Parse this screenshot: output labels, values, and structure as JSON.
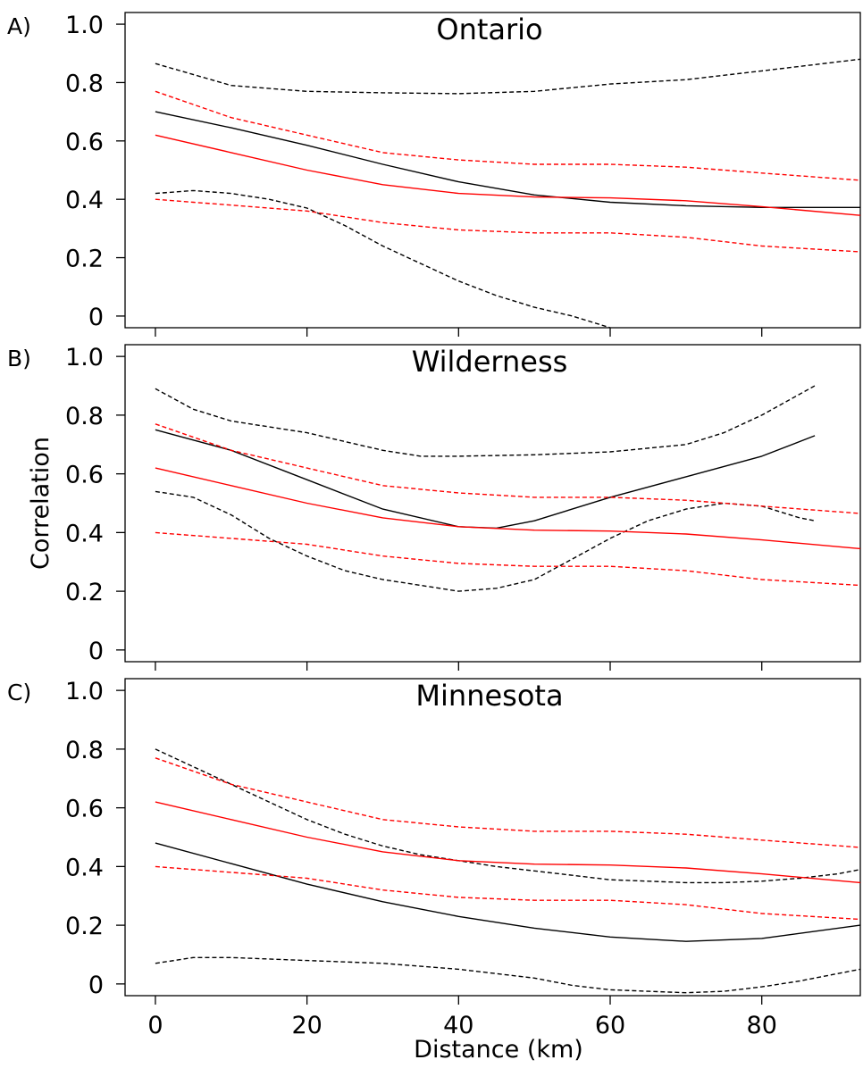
{
  "chart_data": [
    {
      "type": "line",
      "panel_label": "A)",
      "title": "Ontario",
      "xlabel": "",
      "ylabel": "",
      "xlim": [
        -4,
        93
      ],
      "ylim": [
        -0.04,
        1.04
      ],
      "x_ticks": [
        0,
        20,
        40,
        60,
        80
      ],
      "y_ticks": [
        0,
        0.2,
        0.4,
        0.6,
        0.8,
        1.0
      ],
      "y_tick_labels": [
        "0",
        "0.2",
        "0.4",
        "0.6",
        "0.8",
        "1.0"
      ],
      "x_tick_labels_shown": false,
      "series": [
        {
          "style": "solid",
          "color": "#000000",
          "x": [
            0,
            10,
            20,
            30,
            40,
            50,
            60,
            70,
            80,
            93
          ],
          "y": [
            0.7,
            0.645,
            0.585,
            0.52,
            0.46,
            0.415,
            0.39,
            0.378,
            0.372,
            0.372
          ]
        },
        {
          "style": "dashed",
          "color": "#000000",
          "x": [
            0,
            10,
            20,
            30,
            40,
            50,
            60,
            70,
            80,
            93
          ],
          "y": [
            0.865,
            0.79,
            0.77,
            0.765,
            0.762,
            0.77,
            0.795,
            0.81,
            0.84,
            0.88
          ]
        },
        {
          "style": "dashed",
          "color": "#000000",
          "x": [
            0,
            5,
            10,
            15,
            20,
            25,
            30,
            35,
            40,
            45,
            50,
            55,
            60
          ],
          "y": [
            0.42,
            0.43,
            0.42,
            0.4,
            0.37,
            0.31,
            0.24,
            0.18,
            0.12,
            0.07,
            0.03,
            0.0,
            -0.04
          ]
        },
        {
          "style": "solid",
          "color": "#ff0000",
          "x": [
            0,
            10,
            20,
            30,
            40,
            50,
            60,
            70,
            80,
            93
          ],
          "y": [
            0.62,
            0.56,
            0.5,
            0.45,
            0.42,
            0.408,
            0.405,
            0.395,
            0.375,
            0.345
          ]
        },
        {
          "style": "dashed",
          "color": "#ff0000",
          "x": [
            0,
            10,
            20,
            30,
            40,
            50,
            60,
            70,
            80,
            93
          ],
          "y": [
            0.77,
            0.68,
            0.62,
            0.56,
            0.535,
            0.52,
            0.52,
            0.51,
            0.49,
            0.465
          ]
        },
        {
          "style": "dashed",
          "color": "#ff0000",
          "x": [
            0,
            5,
            10,
            20,
            30,
            40,
            50,
            60,
            70,
            80,
            93
          ],
          "y": [
            0.4,
            0.39,
            0.38,
            0.36,
            0.32,
            0.295,
            0.285,
            0.285,
            0.27,
            0.24,
            0.22
          ]
        }
      ]
    },
    {
      "type": "line",
      "panel_label": "B)",
      "title": "Wilderness",
      "xlabel": "",
      "ylabel": "Correlation",
      "xlim": [
        -4,
        93
      ],
      "ylim": [
        -0.04,
        1.04
      ],
      "x_ticks": [
        0,
        20,
        40,
        60,
        80
      ],
      "y_ticks": [
        0,
        0.2,
        0.4,
        0.6,
        0.8,
        1.0
      ],
      "y_tick_labels": [
        "0",
        "0.2",
        "0.4",
        "0.6",
        "0.8",
        "1.0"
      ],
      "x_tick_labels_shown": false,
      "series": [
        {
          "style": "solid",
          "color": "#000000",
          "x": [
            0,
            10,
            20,
            30,
            40,
            45,
            50,
            60,
            70,
            80,
            87
          ],
          "y": [
            0.75,
            0.68,
            0.58,
            0.48,
            0.42,
            0.415,
            0.44,
            0.52,
            0.59,
            0.66,
            0.73
          ]
        },
        {
          "style": "dashed",
          "color": "#000000",
          "x": [
            0,
            5,
            10,
            15,
            20,
            25,
            30,
            35,
            40,
            50,
            60,
            70,
            75,
            80,
            87
          ],
          "y": [
            0.89,
            0.82,
            0.78,
            0.76,
            0.74,
            0.71,
            0.68,
            0.66,
            0.66,
            0.665,
            0.675,
            0.7,
            0.74,
            0.8,
            0.9
          ]
        },
        {
          "style": "dashed",
          "color": "#000000",
          "x": [
            0,
            5,
            10,
            15,
            20,
            25,
            30,
            35,
            40,
            45,
            50,
            55,
            60,
            65,
            70,
            75,
            80,
            85,
            87
          ],
          "y": [
            0.54,
            0.52,
            0.46,
            0.38,
            0.32,
            0.27,
            0.24,
            0.22,
            0.2,
            0.21,
            0.24,
            0.31,
            0.38,
            0.44,
            0.48,
            0.5,
            0.49,
            0.45,
            0.44
          ]
        },
        {
          "style": "solid",
          "color": "#ff0000",
          "x": [
            0,
            10,
            20,
            30,
            40,
            50,
            60,
            70,
            80,
            93
          ],
          "y": [
            0.62,
            0.56,
            0.5,
            0.45,
            0.42,
            0.408,
            0.405,
            0.395,
            0.375,
            0.345
          ]
        },
        {
          "style": "dashed",
          "color": "#ff0000",
          "x": [
            0,
            10,
            20,
            30,
            40,
            50,
            60,
            70,
            80,
            93
          ],
          "y": [
            0.77,
            0.68,
            0.62,
            0.56,
            0.535,
            0.52,
            0.52,
            0.51,
            0.49,
            0.465
          ]
        },
        {
          "style": "dashed",
          "color": "#ff0000",
          "x": [
            0,
            5,
            10,
            20,
            30,
            40,
            50,
            60,
            70,
            80,
            93
          ],
          "y": [
            0.4,
            0.39,
            0.38,
            0.36,
            0.32,
            0.295,
            0.285,
            0.285,
            0.27,
            0.24,
            0.22
          ]
        }
      ]
    },
    {
      "type": "line",
      "panel_label": "C)",
      "title": "Minnesota",
      "xlabel": "Distance (km)",
      "ylabel": "",
      "xlim": [
        -4,
        93
      ],
      "ylim": [
        -0.04,
        1.04
      ],
      "x_ticks": [
        0,
        20,
        40,
        60,
        80
      ],
      "x_tick_labels": [
        "0",
        "20",
        "40",
        "60",
        "80"
      ],
      "y_ticks": [
        0,
        0.2,
        0.4,
        0.6,
        0.8,
        1.0
      ],
      "y_tick_labels": [
        "0",
        "0.2",
        "0.4",
        "0.6",
        "0.8",
        "1.0"
      ],
      "x_tick_labels_shown": true,
      "series": [
        {
          "style": "solid",
          "color": "#000000",
          "x": [
            0,
            10,
            20,
            30,
            40,
            50,
            60,
            70,
            80,
            93
          ],
          "y": [
            0.48,
            0.41,
            0.34,
            0.28,
            0.23,
            0.19,
            0.16,
            0.145,
            0.155,
            0.2
          ]
        },
        {
          "style": "dashed",
          "color": "#000000",
          "x": [
            0,
            5,
            10,
            15,
            20,
            25,
            30,
            35,
            40,
            45,
            50,
            55,
            60,
            65,
            70,
            75,
            80,
            85,
            90,
            93
          ],
          "y": [
            0.8,
            0.74,
            0.68,
            0.62,
            0.56,
            0.51,
            0.47,
            0.44,
            0.42,
            0.4,
            0.385,
            0.37,
            0.355,
            0.35,
            0.345,
            0.345,
            0.35,
            0.36,
            0.375,
            0.39
          ]
        },
        {
          "style": "dashed",
          "color": "#000000",
          "x": [
            0,
            5,
            10,
            20,
            30,
            40,
            50,
            55,
            60,
            65,
            70,
            75,
            80,
            85,
            90,
            93
          ],
          "y": [
            0.07,
            0.09,
            0.09,
            0.08,
            0.07,
            0.05,
            0.02,
            -0.005,
            -0.02,
            -0.025,
            -0.03,
            -0.025,
            -0.01,
            0.01,
            0.035,
            0.05
          ]
        },
        {
          "style": "solid",
          "color": "#ff0000",
          "x": [
            0,
            10,
            20,
            30,
            40,
            50,
            60,
            70,
            80,
            93
          ],
          "y": [
            0.62,
            0.56,
            0.5,
            0.45,
            0.42,
            0.408,
            0.405,
            0.395,
            0.375,
            0.345
          ]
        },
        {
          "style": "dashed",
          "color": "#ff0000",
          "x": [
            0,
            10,
            20,
            30,
            40,
            50,
            60,
            70,
            80,
            93
          ],
          "y": [
            0.77,
            0.68,
            0.62,
            0.56,
            0.535,
            0.52,
            0.52,
            0.51,
            0.49,
            0.465
          ]
        },
        {
          "style": "dashed",
          "color": "#ff0000",
          "x": [
            0,
            5,
            10,
            20,
            30,
            40,
            50,
            60,
            70,
            80,
            93
          ],
          "y": [
            0.4,
            0.39,
            0.38,
            0.36,
            0.32,
            0.295,
            0.285,
            0.285,
            0.27,
            0.24,
            0.22
          ]
        }
      ]
    }
  ]
}
